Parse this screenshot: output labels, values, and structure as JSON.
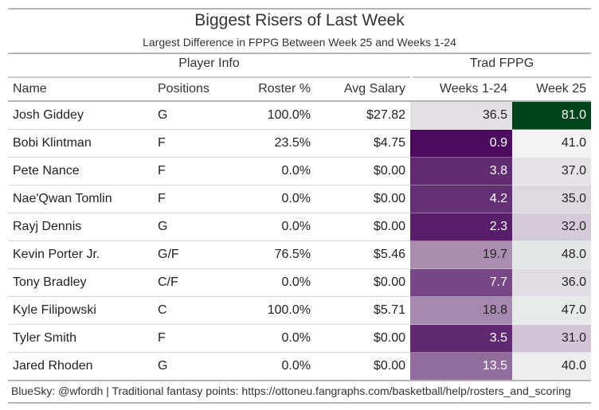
{
  "header": {
    "title": "Biggest Risers of Last Week",
    "subtitle": "Largest Difference in FPPG Between Week 25 and Weeks 1-24"
  },
  "spanners": {
    "player_info": "Player Info",
    "trad_fppg": "Trad FPPG"
  },
  "footer": {
    "note": "BlueSky: @wfordh | Traditional fantasy points: https://ottoneu.fangraphs.com/basketball/help/rosters_and_scoring"
  },
  "chart_data": {
    "type": "table",
    "title": "Biggest Risers of Last Week",
    "subtitle": "Largest Difference in FPPG Between Week 25 and Weeks 1-24",
    "columns": [
      "Name",
      "Positions",
      "Roster %",
      "Avg Salary",
      "Weeks 1-24",
      "Week 25"
    ],
    "column_groups": [
      {
        "label": "Player Info",
        "columns": [
          "Name",
          "Positions",
          "Roster %",
          "Avg Salary"
        ]
      },
      {
        "label": "Trad FPPG",
        "columns": [
          "Weeks 1-24",
          "Week 25"
        ]
      }
    ],
    "rows": [
      {
        "name": "Josh Giddey",
        "positions": "G",
        "roster_pct": "100.0%",
        "avg_salary": "$27.82",
        "weeks_1_24": "36.5",
        "week_25": "81.0"
      },
      {
        "name": "Bobi Klintman",
        "positions": "F",
        "roster_pct": "23.5%",
        "avg_salary": "$4.75",
        "weeks_1_24": "0.9",
        "week_25": "41.0"
      },
      {
        "name": "Pete Nance",
        "positions": "F",
        "roster_pct": "0.0%",
        "avg_salary": "$0.00",
        "weeks_1_24": "3.8",
        "week_25": "37.0"
      },
      {
        "name": "Nae'Qwan Tomlin",
        "positions": "F",
        "roster_pct": "0.0%",
        "avg_salary": "$0.00",
        "weeks_1_24": "4.2",
        "week_25": "35.0"
      },
      {
        "name": "Rayj Dennis",
        "positions": "G",
        "roster_pct": "0.0%",
        "avg_salary": "$0.00",
        "weeks_1_24": "2.3",
        "week_25": "32.0"
      },
      {
        "name": "Kevin Porter Jr.",
        "positions": "G/F",
        "roster_pct": "76.5%",
        "avg_salary": "$5.46",
        "weeks_1_24": "19.7",
        "week_25": "48.0"
      },
      {
        "name": "Tony Bradley",
        "positions": "C/F",
        "roster_pct": "0.0%",
        "avg_salary": "$0.00",
        "weeks_1_24": "7.7",
        "week_25": "36.0"
      },
      {
        "name": "Kyle Filipowski",
        "positions": "C",
        "roster_pct": "100.0%",
        "avg_salary": "$5.71",
        "weeks_1_24": "18.8",
        "week_25": "47.0"
      },
      {
        "name": "Tyler Smith",
        "positions": "F",
        "roster_pct": "0.0%",
        "avg_salary": "$0.00",
        "weeks_1_24": "3.5",
        "week_25": "31.0"
      },
      {
        "name": "Jared Rhoden",
        "positions": "G",
        "roster_pct": "0.0%",
        "avg_salary": "$0.00",
        "weeks_1_24": "13.5",
        "week_25": "40.0"
      }
    ],
    "color_scale": {
      "type": "diverging",
      "low": "#4b0b5e",
      "mid": "#f2f2f2",
      "high": "#00441b",
      "domain": [
        0.9,
        81.0
      ]
    }
  }
}
